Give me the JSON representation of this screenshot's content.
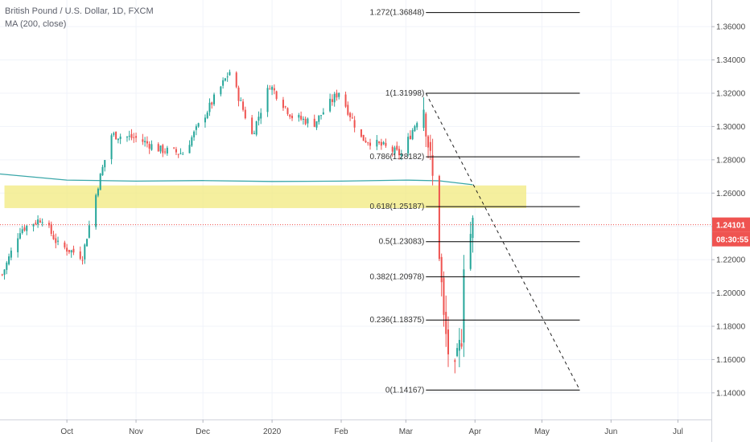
{
  "legend": {
    "symbol": "British Pound / U.S. Dollar, 1D, FXCM",
    "indicator": "MA (200, close)"
  },
  "colors": {
    "up": "#26a69a",
    "down": "#ef5350",
    "ma": "#3aa7a9",
    "zone": "#f2ea7e",
    "price_line": "#ef5350",
    "fib": "#000000",
    "axis_text": "#4a4a4a",
    "grid": "#f0f3fa"
  },
  "chart_data": {
    "type": "candlestick",
    "y_axis": {
      "ylim": [
        1.124,
        1.376
      ],
      "ticks": [
        "1.36000",
        "1.34000",
        "1.32000",
        "1.30000",
        "1.28000",
        "1.26000",
        "1.24000",
        "1.22000",
        "1.20000",
        "1.18000",
        "1.16000",
        "1.14000"
      ],
      "tick_values": [
        1.36,
        1.34,
        1.32,
        1.3,
        1.28,
        1.26,
        1.24,
        1.22,
        1.2,
        1.18,
        1.16,
        1.14
      ]
    },
    "x_axis": {
      "range": [
        "2019-09-01",
        "2020-07-16"
      ],
      "ticks": [
        {
          "date": "2019-10-01",
          "label": "Oct"
        },
        {
          "date": "2019-11-01",
          "label": "Nov"
        },
        {
          "date": "2019-12-01",
          "label": "Dec"
        },
        {
          "date": "2020-01-01",
          "label": "2020"
        },
        {
          "date": "2020-02-01",
          "label": "Feb"
        },
        {
          "date": "2020-03-01",
          "label": "Mar"
        },
        {
          "date": "2020-04-01",
          "label": "Apr"
        },
        {
          "date": "2020-05-01",
          "label": "May"
        },
        {
          "date": "2020-06-01",
          "label": "Jun"
        },
        {
          "date": "2020-07-01",
          "label": "Jul"
        }
      ]
    },
    "last_price": {
      "value": 1.24101,
      "label": "1.24101",
      "countdown": "08:30:55"
    },
    "ma_200": [
      {
        "date": "2019-09-01",
        "value": 1.2715
      },
      {
        "date": "2019-10-01",
        "value": 1.2678
      },
      {
        "date": "2019-11-01",
        "value": 1.2672
      },
      {
        "date": "2019-12-01",
        "value": 1.2675
      },
      {
        "date": "2020-01-01",
        "value": 1.267
      },
      {
        "date": "2020-02-01",
        "value": 1.2672
      },
      {
        "date": "2020-03-01",
        "value": 1.2678
      },
      {
        "date": "2020-03-16",
        "value": 1.2674
      },
      {
        "date": "2020-03-31",
        "value": 1.265
      }
    ],
    "zone": {
      "from": "2019-09-03",
      "to": "2020-04-24",
      "top": 1.2646,
      "bottom": 1.251
    },
    "fib_levels": [
      {
        "label": "1.272(1.36848)",
        "value": 1.36848
      },
      {
        "label": "1(1.31998)",
        "value": 1.31998
      },
      {
        "label": "0.786(1.28182)",
        "value": 1.28182
      },
      {
        "label": "0.618(1.25187)",
        "value": 1.25187
      },
      {
        "label": "0.5(1.23083)",
        "value": 1.23083
      },
      {
        "label": "0.382(1.20978)",
        "value": 1.20978
      },
      {
        "label": "0.236(1.18375)",
        "value": 1.18375
      },
      {
        "label": "0(1.14167)",
        "value": 1.14167
      }
    ],
    "fib_range": {
      "from": "2020-03-10",
      "to": "2020-05-18"
    },
    "trend_line": {
      "from": {
        "date": "2020-03-10",
        "value": 1.31998
      },
      "to": {
        "date": "2020-05-18",
        "value": 1.14167
      }
    },
    "anchors": [
      {
        "date": "2019-09-02",
        "value": 1.211
      },
      {
        "date": "2019-09-10",
        "value": 1.238
      },
      {
        "date": "2019-09-20",
        "value": 1.245
      },
      {
        "date": "2019-09-27",
        "value": 1.229
      },
      {
        "date": "2019-10-08",
        "value": 1.222
      },
      {
        "date": "2019-10-15",
        "value": 1.265
      },
      {
        "date": "2019-10-21",
        "value": 1.295
      },
      {
        "date": "2019-11-01",
        "value": 1.293
      },
      {
        "date": "2019-11-12",
        "value": 1.286
      },
      {
        "date": "2019-11-22",
        "value": 1.284
      },
      {
        "date": "2019-12-04",
        "value": 1.312
      },
      {
        "date": "2019-12-13",
        "value": 1.333
      },
      {
        "date": "2019-12-23",
        "value": 1.295
      },
      {
        "date": "2019-12-31",
        "value": 1.325
      },
      {
        "date": "2020-01-10",
        "value": 1.306
      },
      {
        "date": "2020-01-20",
        "value": 1.302
      },
      {
        "date": "2020-01-31",
        "value": 1.321
      },
      {
        "date": "2020-02-10",
        "value": 1.293
      },
      {
        "date": "2020-02-20",
        "value": 1.288
      },
      {
        "date": "2020-02-28",
        "value": 1.283
      },
      {
        "date": "2020-03-09",
        "value": 1.313
      },
      {
        "date": "2020-03-13",
        "value": 1.268
      },
      {
        "date": "2020-03-16",
        "value": 1.225
      },
      {
        "date": "2020-03-18",
        "value": 1.183
      },
      {
        "date": "2020-03-20",
        "value": 1.165
      },
      {
        "date": "2020-03-23",
        "value": 1.15
      },
      {
        "date": "2020-03-26",
        "value": 1.175
      },
      {
        "date": "2020-03-27",
        "value": 1.221
      },
      {
        "date": "2020-03-31",
        "value": 1.241
      }
    ]
  }
}
